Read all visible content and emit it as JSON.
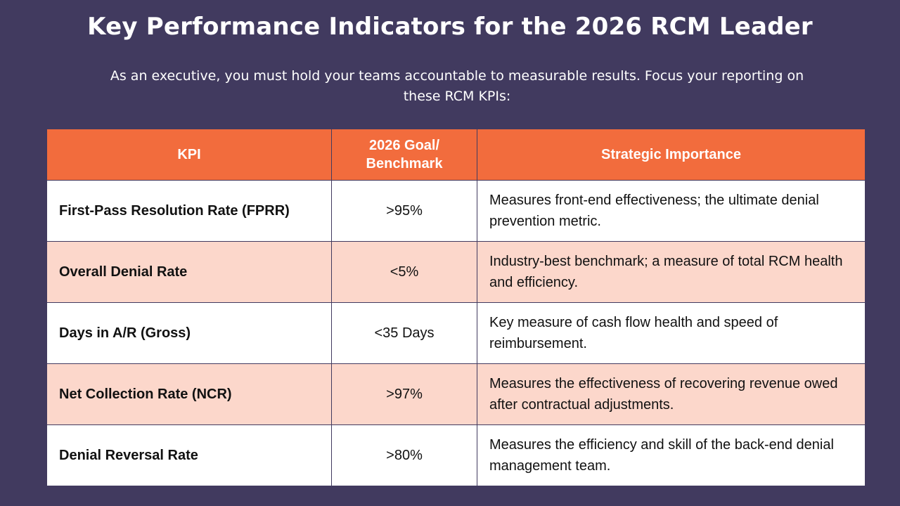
{
  "title": "Key Performance Indicators for the 2026 RCM Leader",
  "subtitle": "As an executive, you must hold your teams accountable to measurable results. Focus your reporting on these RCM KPIs:",
  "colors": {
    "background": "#413a5f",
    "header": "#f26c3d",
    "row_alt": "#fcd7cb",
    "row": "#ffffff"
  },
  "table": {
    "headers": [
      "KPI",
      "2026 Goal/ Benchmark",
      "Strategic Importance"
    ],
    "rows": [
      {
        "kpi": "First-Pass Resolution Rate (FPRR)",
        "goal": ">95%",
        "importance": "Measures front-end effectiveness; the ultimate denial prevention metric."
      },
      {
        "kpi": "Overall Denial Rate",
        "goal": "<5%",
        "importance": "Industry-best benchmark; a measure of total RCM health and efficiency."
      },
      {
        "kpi": "Days in A/R (Gross)",
        "goal": "<35 Days",
        "importance": "Key measure of cash flow health and speed of reimbursement."
      },
      {
        "kpi": "Net Collection Rate (NCR)",
        "goal": ">97%",
        "importance": "Measures the effectiveness of recovering revenue owed after contractual adjustments."
      },
      {
        "kpi": "Denial Reversal Rate",
        "goal": ">80%",
        "importance": "Measures the efficiency and skill of the back-end denial management team."
      }
    ]
  }
}
